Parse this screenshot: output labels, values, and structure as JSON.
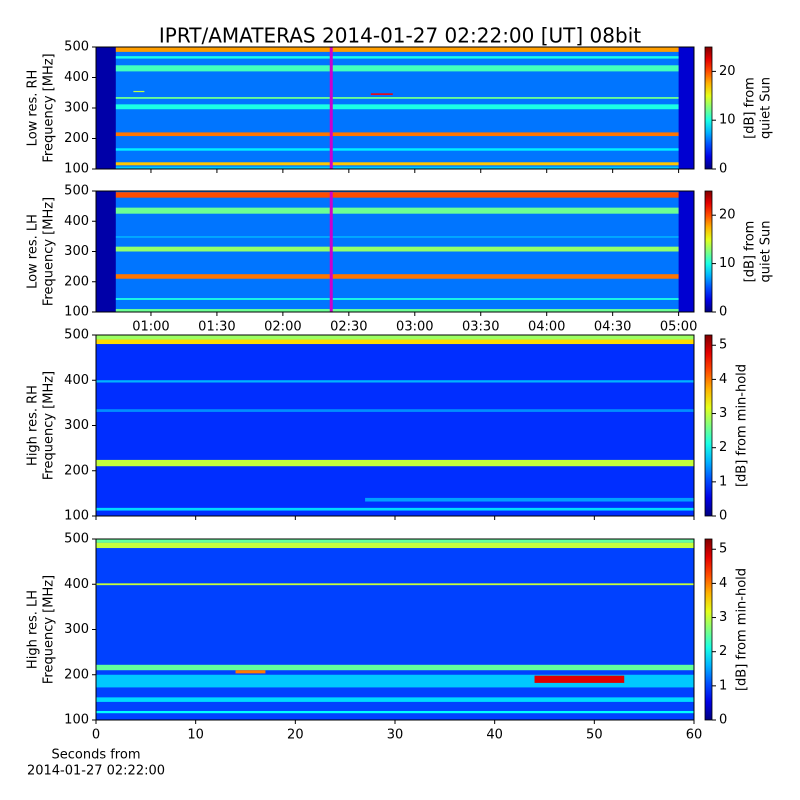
{
  "title": "IPRT/AMATERAS 2014-01-27 02:22:00 [UT]   08bit",
  "chart_data": [
    {
      "type": "spectrogram",
      "ylabel": [
        "Low res. RH",
        "Frequency [MHz]"
      ],
      "xlim": [
        35,
        307
      ],
      "xticks": [
        60,
        90,
        120,
        150,
        180,
        210,
        240,
        270,
        300
      ],
      "show_xtick_labels": false,
      "ylim": [
        100,
        500
      ],
      "yticks": [
        100,
        200,
        300,
        400,
        500
      ],
      "zlim": [
        0,
        25
      ],
      "zticks": [
        0,
        10,
        20
      ],
      "zlabel": [
        "[dB] from",
        "quiet Sun"
      ],
      "cursor": 142,
      "cursor_color": "#cc00cc",
      "background": 6,
      "cells": [
        {
          "x": [
            35,
            307
          ],
          "y": [
            100,
            108
          ],
          "value": 8
        },
        {
          "x": [
            35,
            307
          ],
          "y": [
            112,
            122
          ],
          "value": 17
        },
        {
          "x": [
            35,
            307
          ],
          "y": [
            160,
            168
          ],
          "value": 9
        },
        {
          "x": [
            35,
            307
          ],
          "y": [
            208,
            220
          ],
          "value": 19
        },
        {
          "x": [
            35,
            307
          ],
          "y": [
            296,
            312
          ],
          "value": 10
        },
        {
          "x": [
            35,
            307
          ],
          "y": [
            330,
            336
          ],
          "value": 12
        },
        {
          "x": [
            35,
            307
          ],
          "y": [
            420,
            440
          ],
          "value": 11
        },
        {
          "x": [
            35,
            307
          ],
          "y": [
            462,
            470
          ],
          "value": 10
        },
        {
          "x": [
            35,
            307
          ],
          "y": [
            484,
            500
          ],
          "value": 18
        },
        {
          "x": [
            35,
            44
          ],
          "y": [
            100,
            500
          ],
          "value": 1
        },
        {
          "x": [
            300,
            307
          ],
          "y": [
            100,
            500
          ],
          "value": 2
        },
        {
          "x": [
            160,
            170
          ],
          "y": [
            343,
            348
          ],
          "value": 22
        },
        {
          "x": [
            52,
            57
          ],
          "y": [
            352,
            356
          ],
          "value": 14
        }
      ]
    },
    {
      "type": "spectrogram",
      "ylabel": [
        "Low res. LH",
        "Frequency [MHz]"
      ],
      "xlim": [
        35,
        307
      ],
      "xticks": [
        {
          "value": 60,
          "label": "01:00"
        },
        {
          "value": 90,
          "label": "01:30"
        },
        {
          "value": 120,
          "label": "02:00"
        },
        {
          "value": 150,
          "label": "02:30"
        },
        {
          "value": 180,
          "label": "03:00"
        },
        {
          "value": 210,
          "label": "03:30"
        },
        {
          "value": 240,
          "label": "04:00"
        },
        {
          "value": 270,
          "label": "04:30"
        },
        {
          "value": 300,
          "label": "05:00"
        }
      ],
      "show_xtick_labels": true,
      "ylim": [
        100,
        500
      ],
      "yticks": [
        100,
        200,
        300,
        400,
        500
      ],
      "zlim": [
        0,
        25
      ],
      "zticks": [
        0,
        10,
        20
      ],
      "zlabel": [
        "[dB] from",
        "quiet Sun"
      ],
      "cursor": 142,
      "cursor_color": "#cc00cc",
      "background": 6,
      "cells": [
        {
          "x": [
            35,
            307
          ],
          "y": [
            100,
            110
          ],
          "value": 12
        },
        {
          "x": [
            35,
            307
          ],
          "y": [
            140,
            146
          ],
          "value": 10
        },
        {
          "x": [
            35,
            307
          ],
          "y": [
            210,
            225
          ],
          "value": 19
        },
        {
          "x": [
            35,
            307
          ],
          "y": [
            300,
            316
          ],
          "value": 13
        },
        {
          "x": [
            35,
            307
          ],
          "y": [
            346,
            350
          ],
          "value": 8
        },
        {
          "x": [
            35,
            307
          ],
          "y": [
            425,
            445
          ],
          "value": 12
        },
        {
          "x": [
            35,
            307
          ],
          "y": [
            478,
            496
          ],
          "value": 20
        },
        {
          "x": [
            35,
            44
          ],
          "y": [
            100,
            500
          ],
          "value": 1
        },
        {
          "x": [
            300,
            307
          ],
          "y": [
            100,
            500
          ],
          "value": 2
        }
      ]
    },
    {
      "type": "spectrogram",
      "ylabel": [
        "High res. RH",
        "Frequency [MHz]"
      ],
      "xlim": [
        0,
        60
      ],
      "xticks": [
        0,
        10,
        20,
        30,
        40,
        50,
        60
      ],
      "show_xtick_labels": false,
      "ylim": [
        100,
        500
      ],
      "yticks": [
        100,
        200,
        300,
        400,
        500
      ],
      "zlim": [
        0,
        5.3
      ],
      "zticks": [
        0,
        1,
        2,
        3,
        4,
        5
      ],
      "zlabel": [
        "[dB] from min-hold"
      ],
      "background": 0.9,
      "cells": [
        {
          "x": [
            0,
            60
          ],
          "y": [
            112,
            118
          ],
          "value": 1.8
        },
        {
          "x": [
            27,
            60
          ],
          "y": [
            132,
            140
          ],
          "value": 1.5
        },
        {
          "x": [
            0,
            60
          ],
          "y": [
            210,
            224
          ],
          "value": 3
        },
        {
          "x": [
            0,
            60
          ],
          "y": [
            330,
            336
          ],
          "value": 1.4
        },
        {
          "x": [
            0,
            60
          ],
          "y": [
            395,
            400
          ],
          "value": 1.6
        },
        {
          "x": [
            0,
            60
          ],
          "y": [
            480,
            490
          ],
          "value": 3.5
        },
        {
          "x": [
            0,
            60
          ],
          "y": [
            490,
            500
          ],
          "value": 2.8
        }
      ]
    },
    {
      "type": "spectrogram",
      "ylabel": [
        "High res. LH",
        "Frequency [MHz]"
      ],
      "xlim": [
        0,
        60
      ],
      "xticks": [
        0,
        10,
        20,
        30,
        40,
        50,
        60
      ],
      "show_xtick_labels": true,
      "xlabel": [
        "Seconds from",
        "2014-01-27 02:22:00"
      ],
      "ylim": [
        100,
        500
      ],
      "yticks": [
        100,
        200,
        300,
        400,
        500
      ],
      "zlim": [
        0,
        5.3
      ],
      "zticks": [
        0,
        1,
        2,
        3,
        4,
        5
      ],
      "zlabel": [
        "[dB] from min-hold"
      ],
      "background": 1,
      "cells": [
        {
          "x": [
            0,
            60
          ],
          "y": [
            115,
            120
          ],
          "value": 2
        },
        {
          "x": [
            0,
            60
          ],
          "y": [
            140,
            150
          ],
          "value": 1.8
        },
        {
          "x": [
            0,
            60
          ],
          "y": [
            172,
            200
          ],
          "value": 1.7
        },
        {
          "x": [
            0,
            60
          ],
          "y": [
            210,
            222
          ],
          "value": 2.5
        },
        {
          "x": [
            0,
            60
          ],
          "y": [
            398,
            402
          ],
          "value": 3
        },
        {
          "x": [
            0,
            60
          ],
          "y": [
            480,
            492
          ],
          "value": 3
        },
        {
          "x": [
            0,
            60
          ],
          "y": [
            492,
            500
          ],
          "value": 2.5
        },
        {
          "x": [
            44,
            53
          ],
          "y": [
            182,
            198
          ],
          "value": 4.8
        },
        {
          "x": [
            14,
            17
          ],
          "y": [
            203,
            210
          ],
          "value": 4
        }
      ]
    }
  ]
}
